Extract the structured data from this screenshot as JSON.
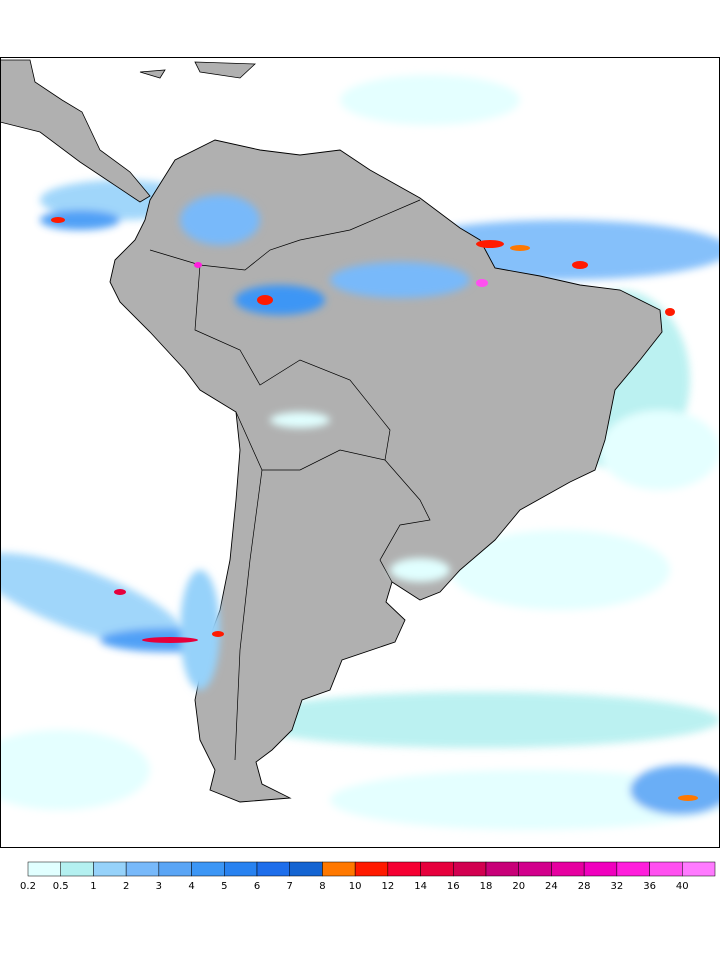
{
  "colorbar": {
    "levels": [
      0.2,
      0.5,
      1,
      2,
      3,
      4,
      5,
      6,
      7,
      8,
      10,
      12,
      14,
      16,
      18,
      20,
      24,
      28,
      32,
      36,
      40
    ],
    "colors": [
      "#e1ffff",
      "#b4f0f0",
      "#96d2fa",
      "#78b9fa",
      "#5aa5f5",
      "#3c96f5",
      "#2882f0",
      "#1e6eeb",
      "#1464d2",
      "#ff7800",
      "#ff1a00",
      "#f50032",
      "#e6003c",
      "#d20050",
      "#c80078",
      "#d2008c",
      "#e600a0",
      "#f000be",
      "#ff1edc",
      "#ff50f0",
      "#ff7aff"
    ]
  }
}
